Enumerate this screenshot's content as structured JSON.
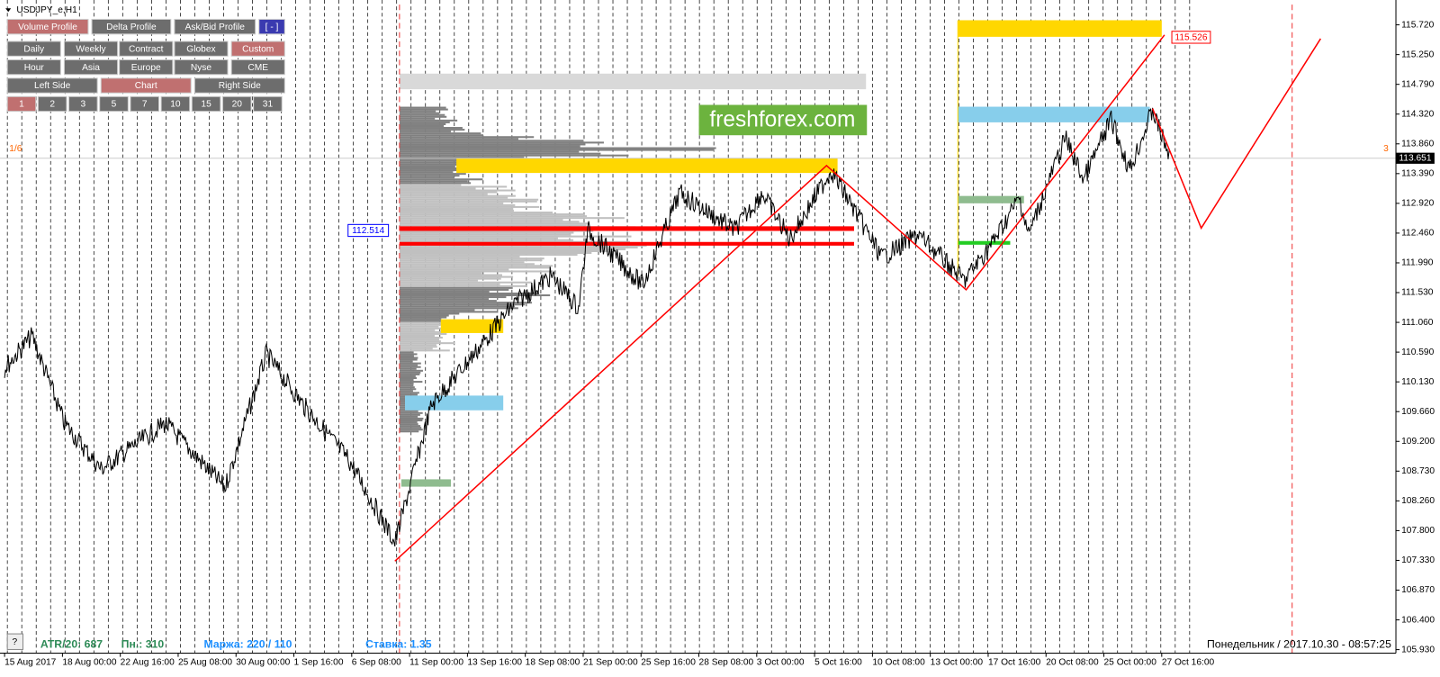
{
  "title": "USDJPY_e,H1",
  "toolbar": {
    "profiles": [
      "Volume Profile",
      "Delta Profile",
      "Ask/Bid Profile",
      "[ - ]"
    ],
    "periods": [
      "Daily",
      "Weekly",
      "Contract",
      "Globex",
      "Custom"
    ],
    "sessions": [
      "Hour",
      "Asia",
      "Europe",
      "Nyse",
      "CME"
    ],
    "sides": [
      "Left Side",
      "Chart",
      "Right Side"
    ],
    "ranges": [
      "1",
      "2",
      "3",
      "5",
      "7",
      "10",
      "15",
      "20",
      "31"
    ]
  },
  "markers": {
    "left": "1/6",
    "right": "3",
    "level": "112.514",
    "target": "115.526"
  },
  "watermark": "freshforex.com",
  "price_axis": {
    "labels": [
      "115.720",
      "115.250",
      "114.790",
      "114.320",
      "113.860",
      "113.390",
      "112.920",
      "112.460",
      "111.990",
      "111.530",
      "111.060",
      "110.590",
      "110.130",
      "109.660",
      "109.200",
      "108.730",
      "108.260",
      "107.800",
      "107.330",
      "106.870",
      "106.400",
      "105.930"
    ],
    "current": "113.651"
  },
  "time_axis": [
    "15 Aug 2017",
    "18 Aug 00:00",
    "22 Aug 16:00",
    "25 Aug 08:00",
    "30 Aug 00:00",
    "1 Sep 16:00",
    "6 Sep 08:00",
    "11 Sep 00:00",
    "13 Sep 16:00",
    "18 Sep 08:00",
    "21 Sep 00:00",
    "25 Sep 16:00",
    "28 Sep 08:00",
    "3 Oct 00:00",
    "5 Oct 16:00",
    "10 Oct 08:00",
    "13 Oct 00:00",
    "17 Oct 16:00",
    "20 Oct 08:00",
    "25 Oct 00:00",
    "27 Oct 16:00"
  ],
  "status": {
    "atr": "ATR/20: 687",
    "pn": "Пн.: 310",
    "margin": "Маржа: 220 / 110",
    "rate": "Ставка: 1.35",
    "clock": "Понедельник / 2017.10.30 - 08:57:25"
  },
  "help": "?"
}
